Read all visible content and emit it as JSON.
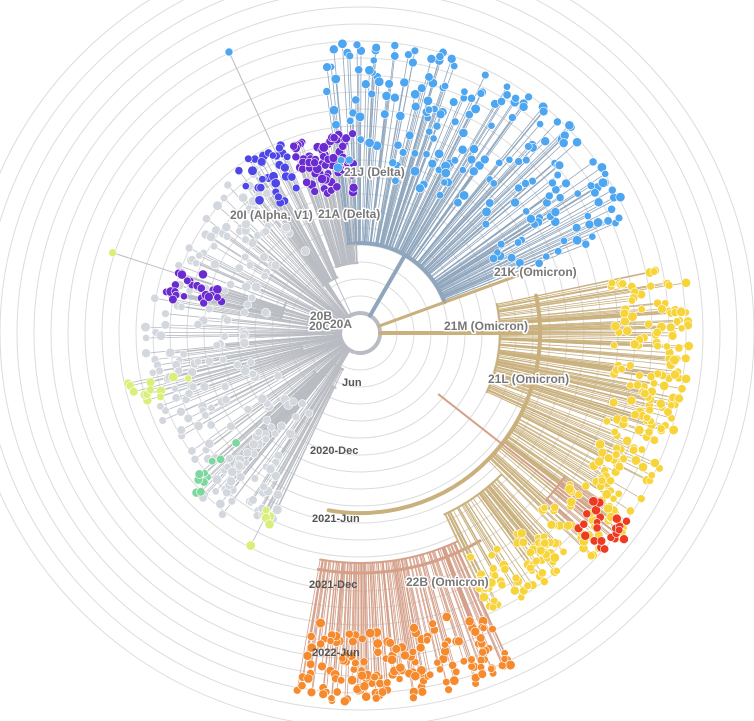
{
  "time_axis": {
    "labels": [
      "Jun",
      "2020-Dec",
      "2021-Jun",
      "2021-Dec",
      "2022-Jun"
    ]
  },
  "clades": [
    {
      "id": "20A",
      "label": "20A",
      "color": "#c9ccd2"
    },
    {
      "id": "20B",
      "label": "20B",
      "color": "#c9ccd2"
    },
    {
      "id": "20C",
      "label": "20C",
      "color": "#c9ccd2"
    },
    {
      "id": "20I",
      "label": "20I (Alpha, V1)",
      "color": "#5a4fe6"
    },
    {
      "id": "21A",
      "label": "21A (Delta)",
      "color": "#6b2fc9"
    },
    {
      "id": "21J",
      "label": "21J (Delta)",
      "color": "#4aa0ef"
    },
    {
      "id": "21K",
      "label": "21K (Omicron)",
      "color": "#c9b27d"
    },
    {
      "id": "21M",
      "label": "21M (Omicron)",
      "color": "#c9a77d"
    },
    {
      "id": "21L",
      "label": "21L (Omicron)",
      "color": "#c9b27d"
    },
    {
      "id": "22B",
      "label": "22B (Omicron)",
      "color": "#d18f6a"
    }
  ],
  "colors": {
    "grey_tips": "#d3d7de",
    "purple_tips": "#6a2bd0",
    "violet_tips": "#4f46e8",
    "blue_tips": "#4ea6f1",
    "yellow_tips": "#f7d43a",
    "orange_tips": "#f58a2e",
    "red_tips": "#ee3a22",
    "green_tips": "#7fd7a0",
    "lime_tips": "#d8f07a",
    "grey_branch": "#b9bcc2",
    "blue_branch": "#8fa6bd",
    "tan_branch": "#c9b07d",
    "peach_branch": "#d4a08a"
  }
}
